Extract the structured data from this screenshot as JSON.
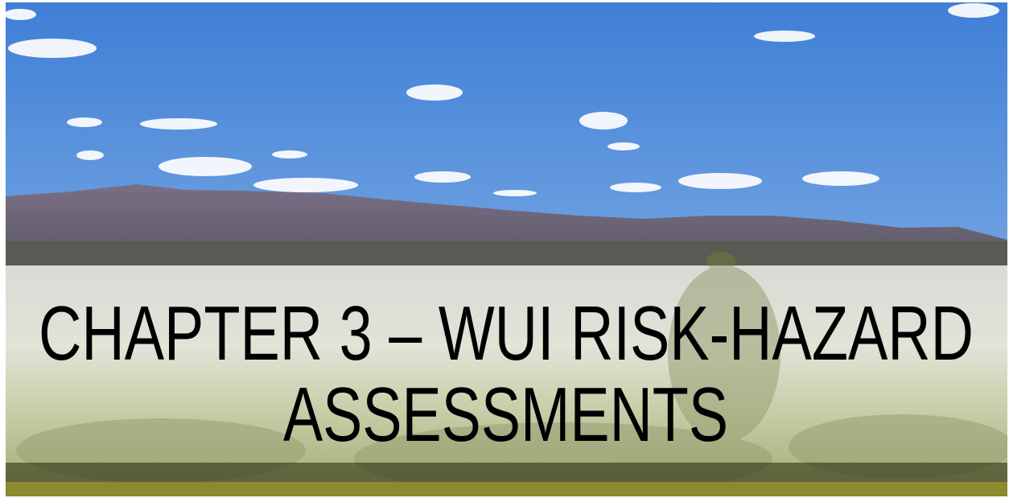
{
  "title": {
    "lines": [
      "CHAPTER 3 – WUI RISK-HAZARD",
      "ASSESSMENTS"
    ]
  }
}
